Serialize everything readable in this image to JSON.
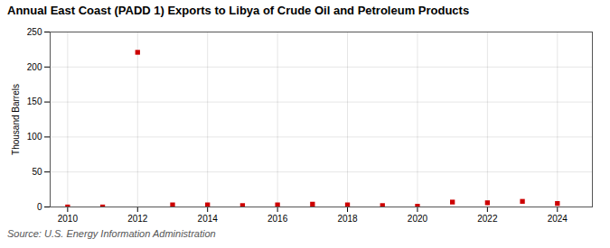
{
  "chart_data": {
    "type": "scatter",
    "title": "Annual East Coast (PADD 1) Exports to Libya of Crude Oil and Petroleum Products",
    "ylabel": "Thousand Barrels",
    "source": "Source: U.S. Energy Information Administration",
    "x": [
      2010,
      2011,
      2012,
      2013,
      2014,
      2015,
      2016,
      2017,
      2018,
      2019,
      2020,
      2021,
      2022,
      2023,
      2024
    ],
    "values": [
      0,
      0,
      221,
      3,
      3,
      2,
      3,
      4,
      3,
      2,
      1,
      7,
      6,
      8,
      5
    ],
    "color": "#cc0000",
    "marker": "square",
    "xlim": [
      2009.5,
      2025.0
    ],
    "ylim": [
      0,
      250
    ],
    "xticks": [
      2010,
      2012,
      2014,
      2016,
      2018,
      2020,
      2022,
      2024
    ],
    "yticks": [
      0,
      50,
      100,
      150,
      200,
      250
    ],
    "grid": true
  }
}
